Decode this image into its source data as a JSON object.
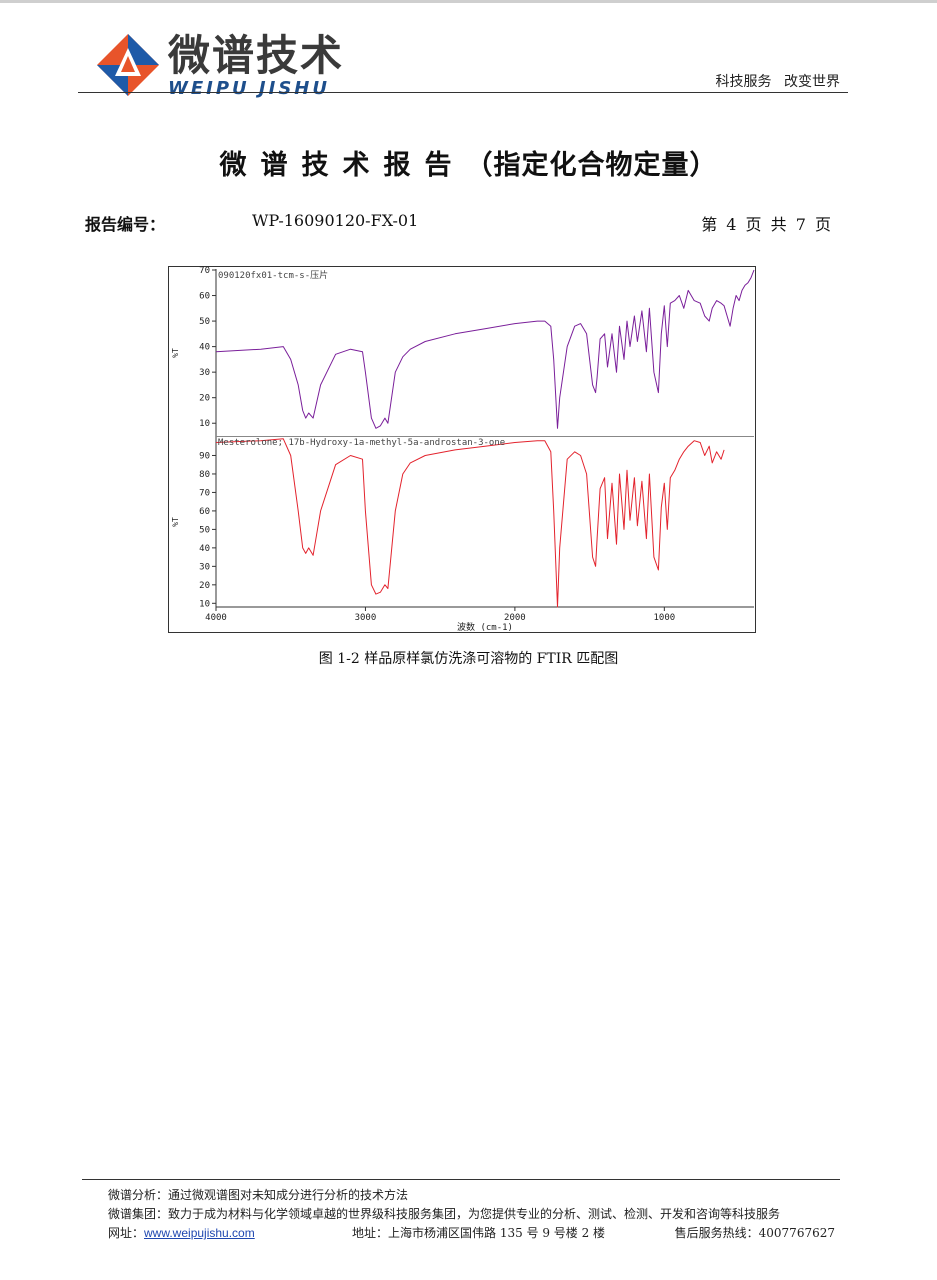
{
  "header": {
    "brand_cn": "微谱技术",
    "brand_en": "WEIPU JISHU",
    "slogan": "科技服务 改变世界",
    "colors": {
      "logo_orange": "#e8542a",
      "logo_blue": "#1e5aa8",
      "brand_text": "#3a3a3a"
    }
  },
  "report": {
    "title_spaced": "微谱技术报告",
    "title_tail": "（指定化合物定量）",
    "number_label": "报告编号：",
    "number_value": "WP-16090120-FX-01",
    "page_info": "第 4 页 共 7 页"
  },
  "figure": {
    "caption": "图 1-2 样品原样氯仿洗涤可溶物的 FTIR 匹配图"
  },
  "chart_data": [
    {
      "type": "line",
      "title": "090120fx01-tcm-s-压片",
      "ylabel": "%T",
      "xlabel": "波数 (cm-1)",
      "xlim": [
        4000,
        400
      ],
      "ylim": [
        5,
        70
      ],
      "yticks": [
        70,
        60,
        50,
        40,
        30,
        20,
        10
      ],
      "color": "#7a1f9a",
      "x": [
        4000,
        3700,
        3550,
        3500,
        3450,
        3420,
        3400,
        3380,
        3350,
        3300,
        3200,
        3100,
        3020,
        3000,
        2960,
        2930,
        2900,
        2870,
        2850,
        2800,
        2750,
        2700,
        2600,
        2400,
        2200,
        2000,
        1850,
        1800,
        1760,
        1740,
        1715,
        1700,
        1650,
        1600,
        1560,
        1520,
        1480,
        1460,
        1450,
        1430,
        1400,
        1380,
        1350,
        1320,
        1300,
        1270,
        1250,
        1230,
        1200,
        1180,
        1150,
        1120,
        1100,
        1070,
        1040,
        1020,
        1000,
        980,
        960,
        930,
        900,
        870,
        840,
        800,
        760,
        730,
        700,
        680,
        650,
        620,
        600,
        580,
        560,
        540,
        520,
        500,
        480,
        460,
        440,
        420,
        400
      ],
      "y": [
        38,
        39,
        40,
        35,
        25,
        15,
        12,
        14,
        12,
        25,
        37,
        39,
        38,
        30,
        12,
        8,
        9,
        12,
        10,
        30,
        36,
        39,
        42,
        45,
        47,
        49,
        50,
        50,
        48,
        35,
        8,
        20,
        40,
        48,
        49,
        45,
        25,
        22,
        28,
        43,
        45,
        32,
        45,
        30,
        48,
        35,
        50,
        40,
        52,
        42,
        54,
        38,
        55,
        30,
        22,
        45,
        56,
        40,
        57,
        58,
        60,
        55,
        62,
        58,
        57,
        52,
        50,
        55,
        58,
        57,
        56,
        52,
        48,
        55,
        60,
        58,
        62,
        64,
        65,
        67,
        70
      ]
    },
    {
      "type": "line",
      "title": "Mesterolone; 17b-Hydroxy-1a-methyl-5a-androstan-3-one",
      "ylabel": "%T",
      "xlabel": "波数 (cm-1)",
      "xlim": [
        4000,
        400
      ],
      "ylim": [
        8,
        100
      ],
      "yticks": [
        90,
        80,
        70,
        60,
        50,
        40,
        30,
        20,
        10
      ],
      "xticks": [
        4000,
        3000,
        2000,
        1000
      ],
      "color": "#e3232d",
      "x": [
        4000,
        3700,
        3550,
        3500,
        3450,
        3420,
        3400,
        3380,
        3350,
        3300,
        3200,
        3100,
        3020,
        3000,
        2960,
        2930,
        2900,
        2870,
        2850,
        2800,
        2750,
        2700,
        2600,
        2400,
        2200,
        2000,
        1850,
        1800,
        1760,
        1740,
        1715,
        1700,
        1650,
        1600,
        1560,
        1520,
        1480,
        1460,
        1450,
        1430,
        1400,
        1380,
        1350,
        1320,
        1300,
        1270,
        1250,
        1230,
        1200,
        1180,
        1150,
        1120,
        1100,
        1070,
        1040,
        1020,
        1000,
        980,
        960,
        930,
        900,
        870,
        840,
        800,
        760,
        730,
        700,
        680,
        650,
        620,
        600
      ],
      "y": [
        97,
        98,
        99,
        90,
        60,
        40,
        37,
        40,
        36,
        60,
        85,
        90,
        88,
        60,
        20,
        15,
        16,
        20,
        18,
        60,
        80,
        86,
        90,
        93,
        95,
        97,
        98,
        98,
        92,
        60,
        8,
        40,
        88,
        92,
        90,
        80,
        35,
        30,
        45,
        72,
        78,
        45,
        75,
        42,
        80,
        50,
        82,
        55,
        78,
        52,
        76,
        45,
        80,
        35,
        28,
        62,
        75,
        50,
        78,
        82,
        88,
        92,
        95,
        98,
        97,
        90,
        95,
        86,
        92,
        88,
        93
      ]
    }
  ],
  "footer": {
    "line1": "微谱分析：通过微观谱图对未知成分进行分析的技术方法",
    "line2": "微谱集团：致力于成为材料与化学领域卓越的世界级科技服务集团，为您提供专业的分析、测试、检测、开发和咨询等科技服务",
    "site_label": "网址：",
    "site_url": "www.weipujishu.com",
    "address": "地址：上海市杨浦区国伟路 135 号 9 号楼 2 楼",
    "hotline": "售后服务热线：4007767627"
  }
}
